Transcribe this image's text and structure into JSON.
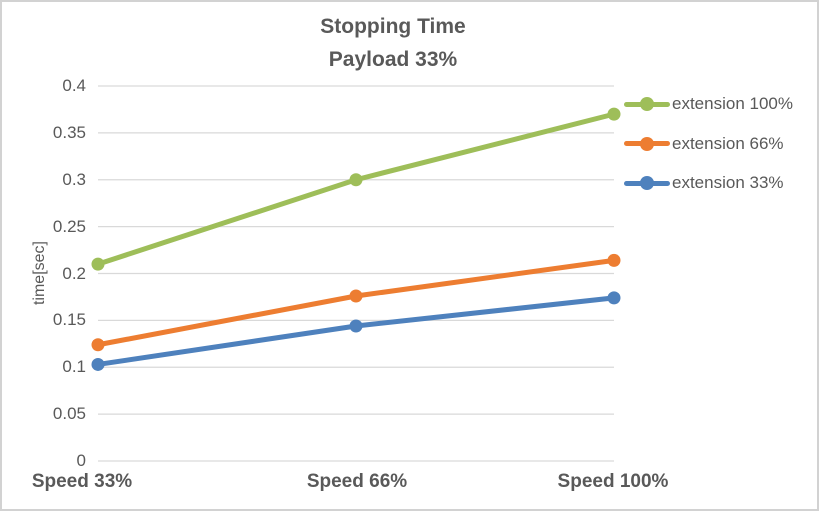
{
  "chart_data": {
    "type": "line",
    "title": "Stopping Time",
    "subtitle": "Payload 33%",
    "ylabel": "time[sec]",
    "categories": [
      "Speed 33%",
      "Speed 66%",
      "Speed 100%"
    ],
    "series": [
      {
        "name": "extension 100%",
        "color": "#9EBE59",
        "values": [
          0.21,
          0.3,
          0.37
        ]
      },
      {
        "name": "extension 66%",
        "color": "#ED7D31",
        "values": [
          0.124,
          0.176,
          0.214
        ]
      },
      {
        "name": "extension 33%",
        "color": "#4E81BD",
        "values": [
          0.103,
          0.144,
          0.174
        ]
      }
    ],
    "ylim": [
      0,
      0.4
    ],
    "ytick_step": 0.05,
    "ytick_labels": [
      "0",
      "0.05",
      "0.1",
      "0.15",
      "0.2",
      "0.25",
      "0.3",
      "0.35",
      "0.4"
    ],
    "grid": true,
    "legend_position": "right",
    "marker": "circle"
  },
  "colors": {
    "text": "#595959",
    "gridline": "#D9D9D9",
    "border": "#D2D2D2",
    "background": "#FFFFFF"
  }
}
